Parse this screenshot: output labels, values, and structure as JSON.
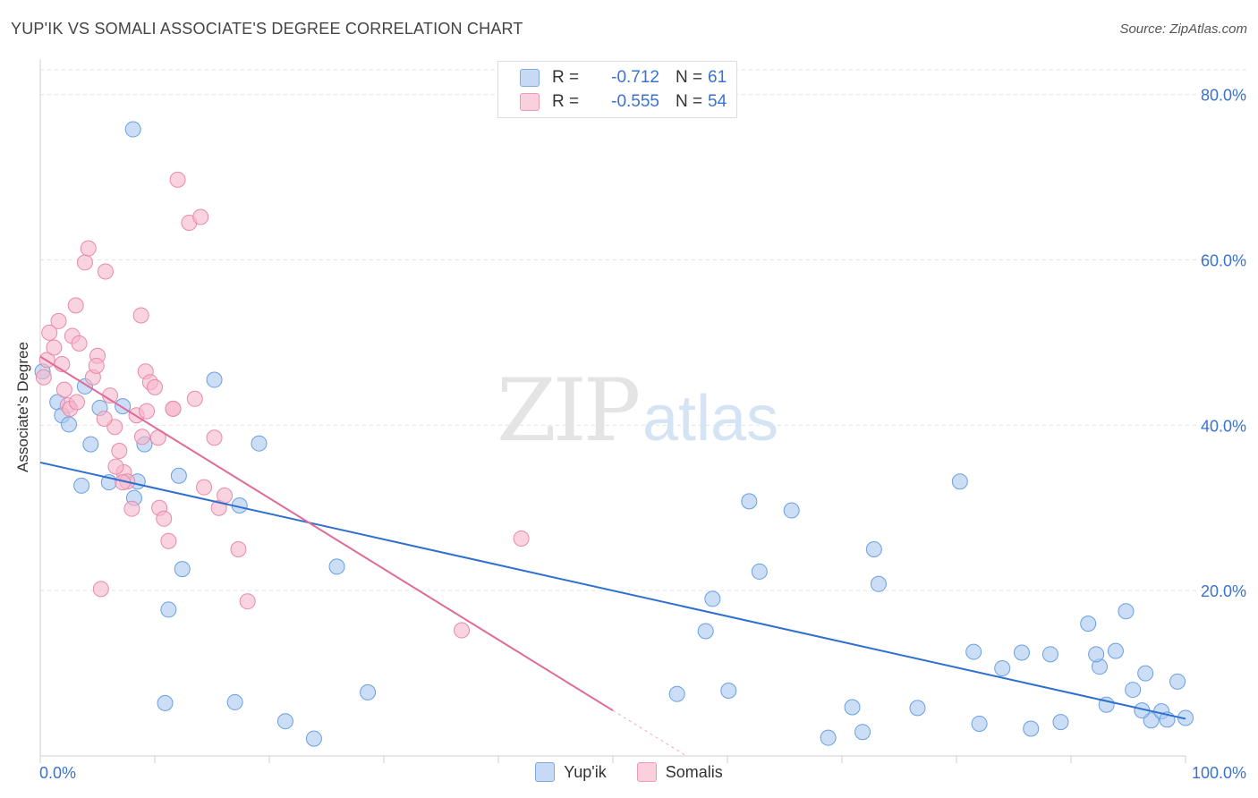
{
  "title": "YUP'IK VS SOMALI ASSOCIATE'S DEGREE CORRELATION CHART",
  "source": "Source: ZipAtlas.com",
  "watermark": {
    "zip": "ZIP",
    "atlas": "atlas"
  },
  "legend": [
    {
      "r_label": "R =",
      "r_value": "-0.712",
      "n_label": "N =",
      "n_value": "61",
      "color": "#a9c8f0"
    },
    {
      "r_label": "R =",
      "r_value": "-0.555",
      "n_label": "N =",
      "n_value": "54",
      "color": "#f5b8cb"
    }
  ],
  "bottom_legend": [
    "Yup'ik",
    "Somalis"
  ],
  "chart_data": {
    "type": "scatter",
    "title": "YUP'IK VS SOMALI ASSOCIATE'S DEGREE CORRELATION CHART",
    "xlabel": "",
    "ylabel": "Associate's Degree",
    "xlim": [
      0,
      100
    ],
    "ylim": [
      0,
      83
    ],
    "x_tick_labels": [
      "0.0%",
      "100.0%"
    ],
    "y_ticks": [
      20,
      40,
      60,
      80
    ],
    "y_tick_labels": [
      "20.0%",
      "40.0%",
      "60.0%",
      "80.0%"
    ],
    "grid": true,
    "legend_position": "top-center",
    "series": [
      {
        "name": "Yup'ik",
        "color": "#a9c8f0",
        "stroke": "#6a9fe0",
        "line_color": "#2f6fd0",
        "trend": {
          "x": [
            0,
            100
          ],
          "y": [
            35.5,
            4.5
          ]
        },
        "x": [
          0.2,
          1.5,
          1.9,
          2.5,
          3.6,
          4.4,
          5.2,
          3.9,
          6.0,
          7.2,
          8.2,
          9.1,
          8.5,
          11.2,
          10.9,
          12.1,
          12.4,
          15.2,
          17.4,
          19.1,
          25.9,
          17.0,
          21.4,
          28.6,
          8.1,
          23.9,
          55.6,
          60.1,
          61.9,
          62.8,
          58.7,
          58.1,
          65.6,
          70.9,
          72.8,
          73.2,
          68.8,
          76.6,
          71.8,
          80.3,
          81.5,
          82.0,
          84.0,
          86.5,
          85.7,
          88.2,
          89.1,
          91.5,
          92.5,
          93.1,
          93.9,
          94.8,
          95.4,
          96.5,
          97.0,
          97.9,
          98.4,
          99.3,
          96.2,
          92.2,
          100.0
        ],
        "y": [
          46.5,
          42.8,
          41.2,
          40.1,
          32.7,
          37.7,
          42.1,
          44.7,
          33.1,
          42.3,
          31.2,
          37.7,
          33.2,
          17.7,
          6.4,
          33.9,
          22.6,
          45.5,
          30.3,
          37.8,
          22.9,
          6.5,
          4.2,
          7.7,
          75.8,
          2.1,
          7.5,
          7.9,
          30.8,
          22.3,
          19.0,
          15.1,
          29.7,
          5.9,
          25.0,
          20.8,
          2.2,
          5.8,
          2.9,
          33.2,
          12.6,
          3.9,
          10.6,
          3.3,
          12.5,
          12.3,
          4.1,
          16.0,
          10.8,
          6.2,
          12.7,
          17.5,
          8.0,
          10.0,
          4.3,
          5.4,
          4.4,
          9.0,
          5.5,
          12.3,
          4.6
        ]
      },
      {
        "name": "Somalis",
        "color": "#f5b8cb",
        "stroke": "#e88aa8",
        "line_color": "#e06b98",
        "trend": {
          "x": [
            0,
            50.0
          ],
          "y": [
            48.3,
            5.5
          ]
        },
        "x": [
          0.3,
          0.6,
          0.8,
          1.2,
          1.6,
          1.9,
          2.1,
          2.4,
          2.8,
          3.1,
          3.4,
          3.9,
          4.2,
          4.6,
          5.0,
          5.3,
          5.7,
          6.1,
          6.5,
          6.9,
          7.3,
          7.6,
          8.0,
          8.4,
          8.8,
          9.2,
          9.6,
          10.0,
          10.4,
          10.8,
          11.2,
          11.6,
          12.0,
          13.0,
          14.0,
          13.5,
          14.3,
          15.2,
          15.6,
          16.1,
          17.3,
          18.1,
          2.6,
          3.2,
          4.9,
          5.6,
          6.6,
          7.2,
          8.9,
          9.3,
          10.3,
          11.6,
          42.0,
          36.8
        ],
        "y": [
          45.8,
          47.9,
          51.2,
          49.4,
          52.6,
          47.4,
          44.3,
          42.4,
          50.8,
          54.5,
          49.9,
          59.7,
          61.4,
          45.8,
          48.4,
          20.2,
          58.6,
          43.6,
          39.8,
          36.9,
          34.3,
          33.2,
          29.9,
          41.2,
          53.3,
          46.5,
          45.2,
          44.6,
          30.0,
          28.7,
          26.0,
          42.0,
          69.7,
          64.5,
          65.2,
          43.2,
          32.5,
          38.5,
          30.0,
          31.5,
          25.0,
          18.7,
          42.0,
          42.8,
          47.2,
          40.8,
          35.0,
          33.1,
          38.6,
          41.7,
          38.5,
          42.0,
          26.3,
          15.2
        ]
      }
    ]
  }
}
